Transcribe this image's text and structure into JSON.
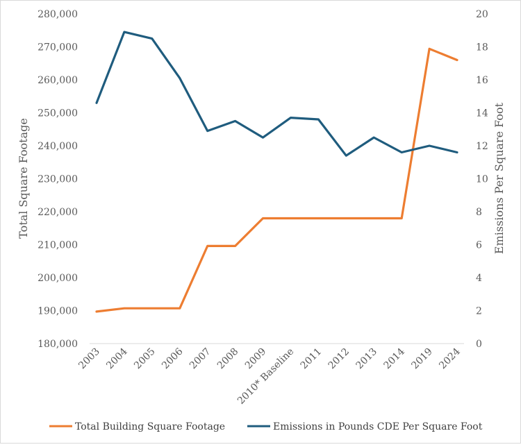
{
  "chart_data": {
    "type": "line",
    "categories": [
      "2003",
      "2004",
      "2005",
      "2006",
      "2007",
      "2008",
      "2009",
      "2010* Baseline",
      "2011",
      "2012",
      "2013",
      "2014",
      "2019",
      "2024"
    ],
    "series": [
      {
        "name": "Total Building Square Footage",
        "axis": "left",
        "color": "#ED7D31",
        "values": [
          189700,
          190700,
          190700,
          190700,
          209600,
          209600,
          218000,
          218000,
          218000,
          218000,
          218000,
          218000,
          269400,
          266000
        ]
      },
      {
        "name": "Emissions in Pounds CDE Per Square Foot",
        "axis": "right",
        "color": "#1F5C7E",
        "values": [
          14.6,
          18.9,
          18.5,
          16.1,
          12.9,
          13.5,
          12.5,
          13.7,
          13.6,
          11.4,
          12.5,
          11.6,
          12.0,
          11.6
        ]
      }
    ],
    "ylabel": "Total Square Footage",
    "y2label": "Emissions Per Square Foot",
    "ylim": [
      180000,
      280000
    ],
    "y2lim": [
      0,
      20
    ],
    "yticks": [
      "180,000",
      "190,000",
      "200,000",
      "210,000",
      "220,000",
      "230,000",
      "240,000",
      "250,000",
      "260,000",
      "270,000",
      "280,000"
    ],
    "y2ticks": [
      "0",
      "2",
      "4",
      "6",
      "8",
      "10",
      "12",
      "14",
      "16",
      "18",
      "20"
    ],
    "grid": false,
    "legend_position": "bottom"
  }
}
